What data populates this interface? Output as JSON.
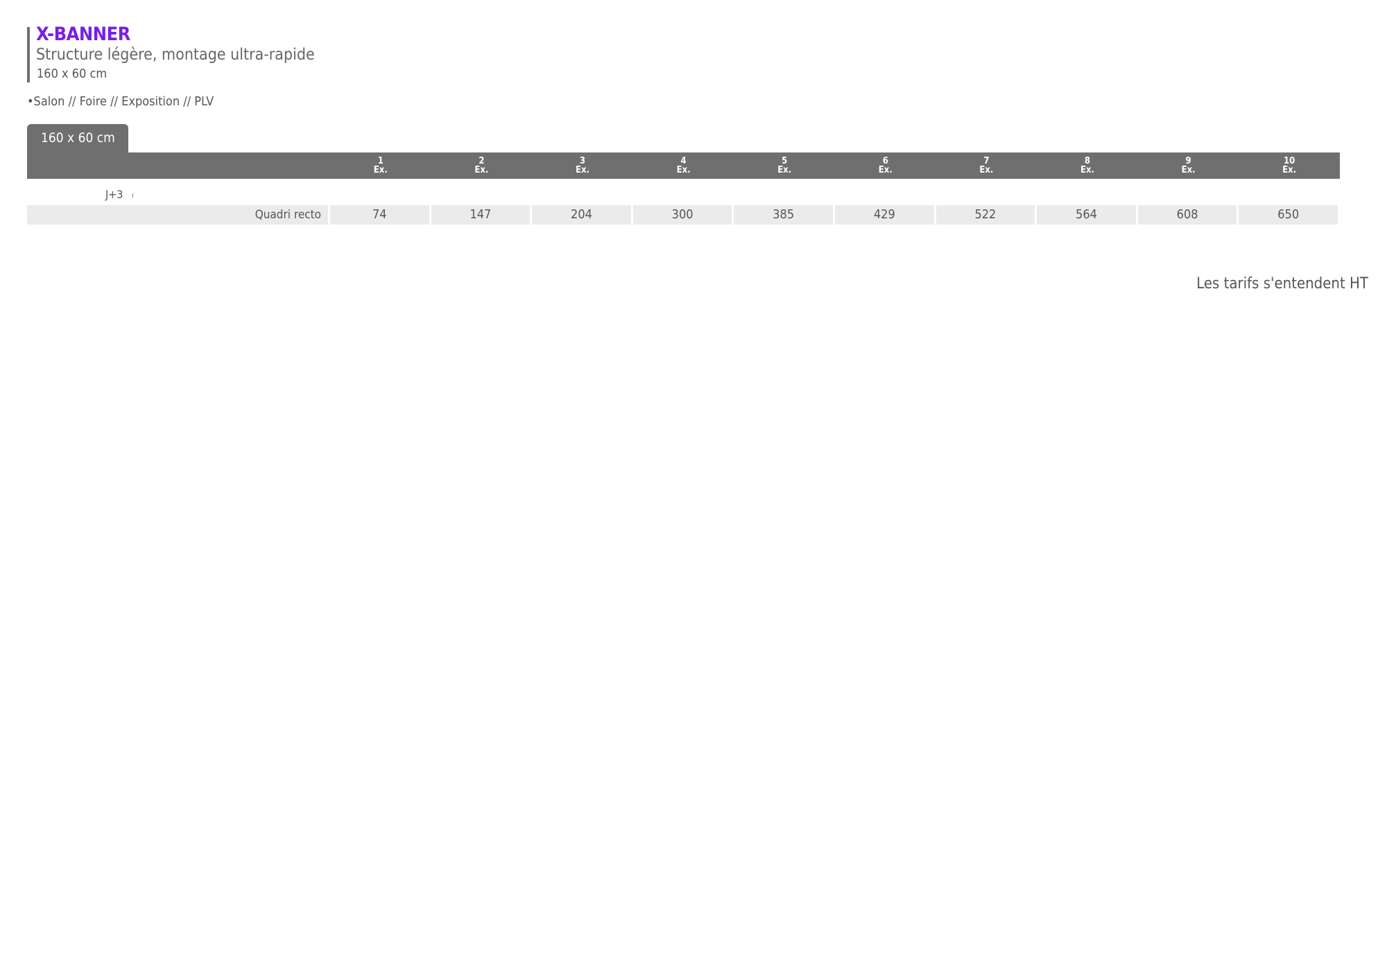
{
  "colors": {
    "accent": "#7a1de8",
    "header_bg": "#6f6f6f",
    "row_bg": "#ebebeb"
  },
  "header": {
    "title": "X-BANNER",
    "subtitle": "Structure légère, montage ultra-rapide",
    "dimensions": "160 x 60 cm",
    "uses": "•Salon // Foire // Exposition // PLV"
  },
  "table": {
    "tab_label": "160 x 60 cm",
    "columns": [
      {
        "qty": "1",
        "unit": "Ex."
      },
      {
        "qty": "2",
        "unit": "Ex."
      },
      {
        "qty": "3",
        "unit": "Ex."
      },
      {
        "qty": "4",
        "unit": "Ex."
      },
      {
        "qty": "5",
        "unit": "Ex."
      },
      {
        "qty": "6",
        "unit": "Ex."
      },
      {
        "qty": "7",
        "unit": "Ex."
      },
      {
        "qty": "8",
        "unit": "Ex."
      },
      {
        "qty": "9",
        "unit": "Ex."
      },
      {
        "qty": "10",
        "unit": "Ex."
      }
    ],
    "delay_label": "J+3",
    "rows": [
      {
        "label": "Quadri recto",
        "values": [
          "74",
          "147",
          "204",
          "300",
          "385",
          "429",
          "522",
          "564",
          "608",
          "650"
        ]
      }
    ]
  },
  "footer": {
    "note": "Les tarifs s'entendent HT"
  }
}
